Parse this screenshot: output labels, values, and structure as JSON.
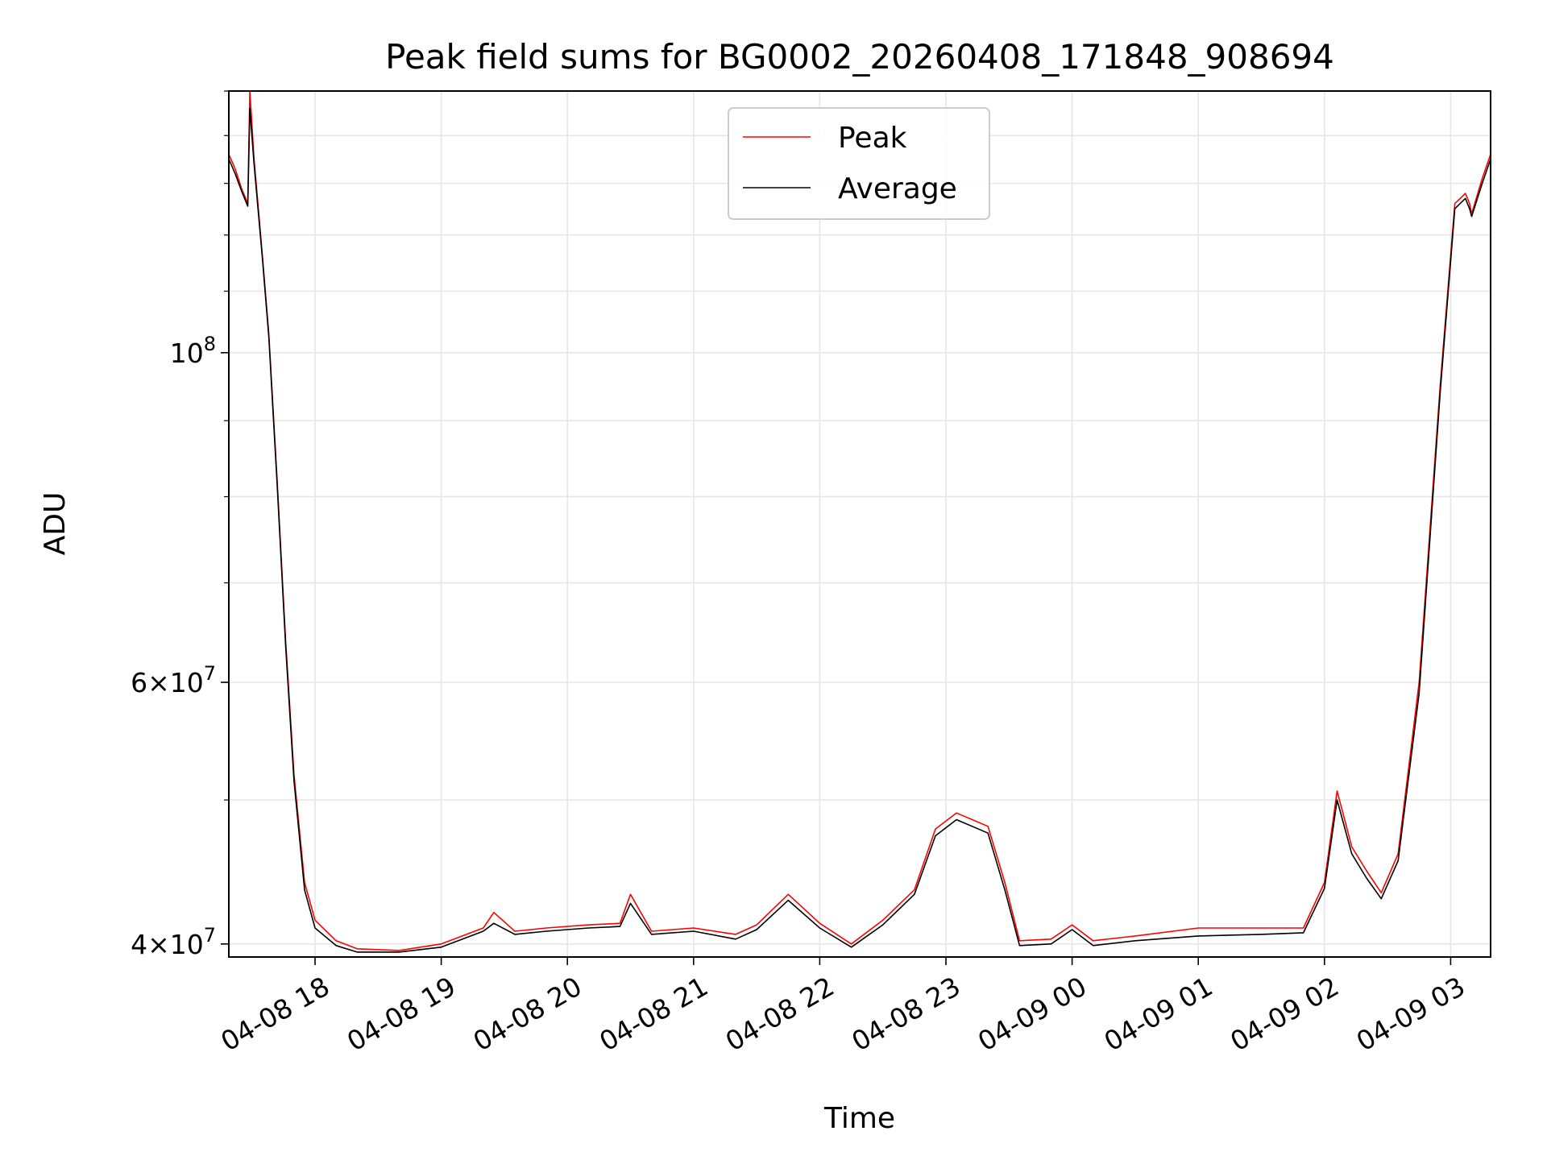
{
  "chart_data": {
    "type": "line",
    "title": "Peak field sums for BG0002_20260408_171848_908694",
    "xlabel": "Time",
    "ylabel": "ADU",
    "y_scale": "log",
    "grid": true,
    "legend_position": "top-center",
    "xlim": [
      "2026-04-08 17:19",
      "2026-04-09 03:19"
    ],
    "ylim": [
      39200000,
      150000000
    ],
    "x_ticks": [
      "04-08 18",
      "04-08 19",
      "04-08 20",
      "04-08 21",
      "04-08 22",
      "04-08 23",
      "04-09 00",
      "04-09 01",
      "04-09 02",
      "04-09 03"
    ],
    "y_ticks": [
      {
        "value": 40000000,
        "mantissa": "4",
        "exp": "7"
      },
      {
        "value": 60000000,
        "mantissa": "6",
        "exp": "7"
      },
      {
        "value": 100000000,
        "mantissa": "",
        "exp": "8"
      }
    ],
    "series": [
      {
        "name": "Peak",
        "color": "#ff0000",
        "points": [
          [
            "2026-04-08 17:19",
            136000000
          ],
          [
            "2026-04-08 17:22",
            133000000
          ],
          [
            "2026-04-08 17:25",
            129000000
          ],
          [
            "2026-04-08 17:28",
            126000000
          ],
          [
            "2026-04-08 17:29",
            150000000
          ],
          [
            "2026-04-08 17:31",
            135000000
          ],
          [
            "2026-04-08 17:35",
            116000000
          ],
          [
            "2026-04-08 17:38",
            103000000
          ],
          [
            "2026-04-08 17:42",
            82000000
          ],
          [
            "2026-04-08 17:46",
            64000000
          ],
          [
            "2026-04-08 17:50",
            52000000
          ],
          [
            "2026-04-08 17:55",
            44000000
          ],
          [
            "2026-04-08 18:00",
            41500000
          ],
          [
            "2026-04-08 18:10",
            40200000
          ],
          [
            "2026-04-08 18:20",
            39700000
          ],
          [
            "2026-04-08 18:40",
            39600000
          ],
          [
            "2026-04-08 19:00",
            40000000
          ],
          [
            "2026-04-08 19:20",
            41000000
          ],
          [
            "2026-04-08 19:25",
            42000000
          ],
          [
            "2026-04-08 19:35",
            40800000
          ],
          [
            "2026-04-08 19:50",
            41000000
          ],
          [
            "2026-04-08 20:10",
            41200000
          ],
          [
            "2026-04-08 20:25",
            41300000
          ],
          [
            "2026-04-08 20:30",
            43200000
          ],
          [
            "2026-04-08 20:40",
            40800000
          ],
          [
            "2026-04-08 21:00",
            41000000
          ],
          [
            "2026-04-08 21:20",
            40600000
          ],
          [
            "2026-04-08 21:30",
            41200000
          ],
          [
            "2026-04-08 21:45",
            43200000
          ],
          [
            "2026-04-08 22:00",
            41300000
          ],
          [
            "2026-04-08 22:15",
            40000000
          ],
          [
            "2026-04-08 22:30",
            41500000
          ],
          [
            "2026-04-08 22:45",
            43500000
          ],
          [
            "2026-04-08 22:55",
            47800000
          ],
          [
            "2026-04-08 23:05",
            49000000
          ],
          [
            "2026-04-08 23:20",
            48000000
          ],
          [
            "2026-04-08 23:28",
            44000000
          ],
          [
            "2026-04-08 23:35",
            40200000
          ],
          [
            "2026-04-08 23:50",
            40300000
          ],
          [
            "2026-04-09 00:00",
            41200000
          ],
          [
            "2026-04-09 00:10",
            40200000
          ],
          [
            "2026-04-09 00:30",
            40500000
          ],
          [
            "2026-04-09 01:00",
            41000000
          ],
          [
            "2026-04-09 01:30",
            41000000
          ],
          [
            "2026-04-09 01:50",
            41000000
          ],
          [
            "2026-04-09 02:00",
            44000000
          ],
          [
            "2026-04-09 02:06",
            50700000
          ],
          [
            "2026-04-09 02:13",
            46500000
          ],
          [
            "2026-04-09 02:20",
            44800000
          ],
          [
            "2026-04-09 02:27",
            43300000
          ],
          [
            "2026-04-09 02:35",
            46000000
          ],
          [
            "2026-04-09 02:45",
            60000000
          ],
          [
            "2026-04-09 02:55",
            95000000
          ],
          [
            "2026-04-09 03:02",
            126000000
          ],
          [
            "2026-04-09 03:07",
            128000000
          ],
          [
            "2026-04-09 03:09",
            126000000
          ],
          [
            "2026-04-09 03:10",
            124000000
          ],
          [
            "2026-04-09 03:15",
            131000000
          ],
          [
            "2026-04-09 03:19",
            136000000
          ]
        ]
      },
      {
        "name": "Average",
        "color": "#000000",
        "points": [
          [
            "2026-04-08 17:19",
            135000000
          ],
          [
            "2026-04-08 17:22",
            132000000
          ],
          [
            "2026-04-08 17:25",
            128500000
          ],
          [
            "2026-04-08 17:28",
            125500000
          ],
          [
            "2026-04-08 17:29",
            146000000
          ],
          [
            "2026-04-08 17:31",
            134000000
          ],
          [
            "2026-04-08 17:35",
            115500000
          ],
          [
            "2026-04-08 17:38",
            102500000
          ],
          [
            "2026-04-08 17:42",
            81500000
          ],
          [
            "2026-04-08 17:46",
            63500000
          ],
          [
            "2026-04-08 17:50",
            51500000
          ],
          [
            "2026-04-08 17:55",
            43500000
          ],
          [
            "2026-04-08 18:00",
            41000000
          ],
          [
            "2026-04-08 18:10",
            39900000
          ],
          [
            "2026-04-08 18:20",
            39500000
          ],
          [
            "2026-04-08 18:40",
            39500000
          ],
          [
            "2026-04-08 19:00",
            39800000
          ],
          [
            "2026-04-08 19:20",
            40800000
          ],
          [
            "2026-04-08 19:25",
            41300000
          ],
          [
            "2026-04-08 19:35",
            40600000
          ],
          [
            "2026-04-08 19:50",
            40800000
          ],
          [
            "2026-04-08 20:10",
            41000000
          ],
          [
            "2026-04-08 20:25",
            41100000
          ],
          [
            "2026-04-08 20:30",
            42600000
          ],
          [
            "2026-04-08 20:40",
            40600000
          ],
          [
            "2026-04-08 21:00",
            40800000
          ],
          [
            "2026-04-08 21:20",
            40300000
          ],
          [
            "2026-04-08 21:30",
            40900000
          ],
          [
            "2026-04-08 21:45",
            42800000
          ],
          [
            "2026-04-08 22:00",
            41000000
          ],
          [
            "2026-04-08 22:15",
            39800000
          ],
          [
            "2026-04-08 22:30",
            41200000
          ],
          [
            "2026-04-08 22:45",
            43200000
          ],
          [
            "2026-04-08 22:55",
            47300000
          ],
          [
            "2026-04-08 23:05",
            48500000
          ],
          [
            "2026-04-08 23:20",
            47500000
          ],
          [
            "2026-04-08 23:28",
            43500000
          ],
          [
            "2026-04-08 23:35",
            39900000
          ],
          [
            "2026-04-08 23:50",
            40000000
          ],
          [
            "2026-04-09 00:00",
            40900000
          ],
          [
            "2026-04-09 00:10",
            39900000
          ],
          [
            "2026-04-09 00:30",
            40200000
          ],
          [
            "2026-04-09 01:00",
            40500000
          ],
          [
            "2026-04-09 01:30",
            40600000
          ],
          [
            "2026-04-09 01:50",
            40700000
          ],
          [
            "2026-04-09 02:00",
            43600000
          ],
          [
            "2026-04-09 02:06",
            50000000
          ],
          [
            "2026-04-09 02:13",
            46000000
          ],
          [
            "2026-04-09 02:20",
            44300000
          ],
          [
            "2026-04-09 02:27",
            42900000
          ],
          [
            "2026-04-09 02:35",
            45500000
          ],
          [
            "2026-04-09 02:45",
            59000000
          ],
          [
            "2026-04-09 02:55",
            94000000
          ],
          [
            "2026-04-09 03:02",
            125000000
          ],
          [
            "2026-04-09 03:07",
            127000000
          ],
          [
            "2026-04-09 03:09",
            125000000
          ],
          [
            "2026-04-09 03:10",
            123500000
          ],
          [
            "2026-04-09 03:15",
            130000000
          ],
          [
            "2026-04-09 03:19",
            135000000
          ]
        ]
      }
    ]
  }
}
